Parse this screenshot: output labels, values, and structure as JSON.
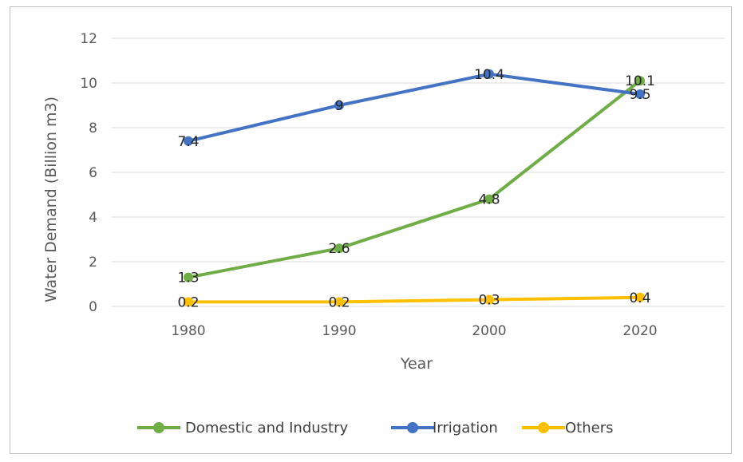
{
  "chart_data": {
    "type": "line",
    "title": "",
    "xlabel": "Year",
    "ylabel": "Water Demand (Billion m3)",
    "categories": [
      "1980",
      "1990",
      "2000",
      "2020"
    ],
    "y_ticks": [
      "0",
      "2",
      "4",
      "6",
      "8",
      "10",
      "12"
    ],
    "ylim": [
      0,
      12
    ],
    "grid": true,
    "legend_position": "bottom",
    "series": [
      {
        "name": "Domestic and Industry",
        "color": "#70ad47",
        "values": [
          1.3,
          2.6,
          4.8,
          10.1
        ],
        "labels": [
          "1.3",
          "2.6",
          "4.8",
          "10.1"
        ]
      },
      {
        "name": "Irrigation",
        "color": "#4472c4",
        "values": [
          7.4,
          9,
          10.4,
          9.5
        ],
        "labels": [
          "7.4",
          "9",
          "10.4",
          "9.5"
        ]
      },
      {
        "name": "Others",
        "color": "#ffc000",
        "values": [
          0.2,
          0.2,
          0.3,
          0.4
        ],
        "labels": [
          "0.2",
          "0.2",
          "0.3",
          "0.4"
        ]
      }
    ]
  }
}
